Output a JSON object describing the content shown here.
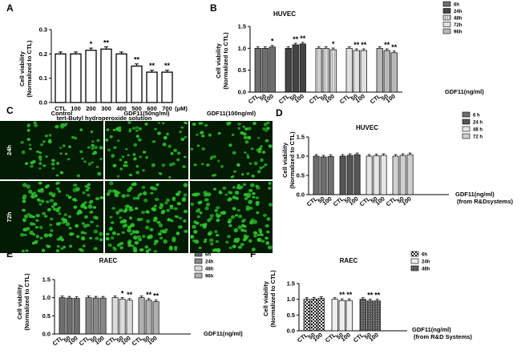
{
  "chart_data": [
    {
      "panel": "A",
      "type": "bar",
      "title": "",
      "ylabel": "Cell viability\n(Normalized to CTL)",
      "xlabel": "tert-Butyl hydroperoxide solution",
      "unit_label": "(μM)",
      "categories": [
        "CTL",
        "100",
        "200",
        "300",
        "400",
        "500",
        "600",
        "700"
      ],
      "values": [
        0.2,
        0.2,
        0.215,
        0.22,
        0.2,
        0.15,
        0.125,
        0.125
      ],
      "errors": [
        0.003,
        0.003,
        0.004,
        0.004,
        0.003,
        0.004,
        0.003,
        0.003
      ],
      "annotations": [
        "",
        "",
        "*",
        "**",
        "",
        "**",
        "**",
        "**"
      ],
      "yticks": [
        "0.0",
        "0.1",
        "0.2",
        "0.3"
      ],
      "ylim": [
        0,
        0.3
      ],
      "fill": "#ffffff"
    },
    {
      "panel": "B",
      "type": "bar",
      "title": "HUVEC",
      "ylabel": "Cell viability\n(Normalized to CTL)",
      "xlabel": "GDF11(ng/ml)",
      "xlabel2": "",
      "groups": [
        "6h",
        "24h",
        "48h",
        "72h",
        "96h"
      ],
      "categories": [
        "CTL",
        "50",
        "100"
      ],
      "series": [
        {
          "name": "6h",
          "values": [
            1.0,
            1.0,
            1.03
          ],
          "annotations": [
            "",
            "",
            "*"
          ]
        },
        {
          "name": "24h",
          "values": [
            1.0,
            1.08,
            1.1
          ],
          "annotations": [
            "",
            "**",
            "**"
          ]
        },
        {
          "name": "48h",
          "values": [
            1.0,
            1.0,
            0.97
          ],
          "annotations": [
            "",
            "",
            "*"
          ]
        },
        {
          "name": "72h",
          "values": [
            1.0,
            0.95,
            0.95
          ],
          "annotations": [
            "",
            "**",
            "**"
          ]
        },
        {
          "name": "96h",
          "values": [
            1.0,
            0.95,
            0.9
          ],
          "annotations": [
            "",
            "**",
            "**"
          ]
        }
      ],
      "legend": [
        "6h",
        "24h",
        "48h",
        "72h",
        "96h"
      ],
      "legend_position": "top-right",
      "yticks": [
        "0.0",
        "0.5",
        "1.0",
        "1.5"
      ],
      "ylim": [
        0,
        1.5
      ]
    },
    {
      "panel": "D",
      "type": "bar",
      "title": "HUVEC",
      "ylabel": "Cell viability\n(Normalized to CTL)",
      "xlabel": "GDF11(ng/ml)",
      "xlabel2": "(from R&Dsystems)",
      "groups": [
        "6 h",
        "24 h",
        "48 h",
        "72 h"
      ],
      "categories": [
        "CTL",
        "50",
        "100"
      ],
      "series": [
        {
          "name": "6 h",
          "values": [
            1.0,
            0.98,
            0.99
          ],
          "annotations": [
            "",
            "",
            ""
          ]
        },
        {
          "name": "24 h",
          "values": [
            1.0,
            1.02,
            1.04
          ],
          "annotations": [
            "",
            "",
            ""
          ]
        },
        {
          "name": "48 h",
          "values": [
            1.0,
            1.01,
            1.02
          ],
          "annotations": [
            "",
            "",
            ""
          ]
        },
        {
          "name": "72 h",
          "values": [
            1.0,
            1.02,
            1.04
          ],
          "annotations": [
            "",
            "",
            ""
          ]
        }
      ],
      "legend": [
        "6 h",
        "24 h",
        "48 h",
        "72 h"
      ],
      "legend_position": "top-right",
      "yticks": [
        "0.0",
        "0.5",
        "1.0",
        "1.5"
      ],
      "ylim": [
        0,
        1.5
      ]
    },
    {
      "panel": "E",
      "type": "bar",
      "title": "RAEC",
      "ylabel": "Cell viability\n(Normalized to CTL)",
      "xlabel": "GDF11(ng/ml)",
      "xlabel2": "",
      "groups": [
        "6h",
        "24h",
        "48h",
        "96h"
      ],
      "categories": [
        "CTL",
        "50",
        "100"
      ],
      "series": [
        {
          "name": "6h",
          "values": [
            1.0,
            0.99,
            0.98
          ],
          "annotations": [
            "",
            "",
            ""
          ]
        },
        {
          "name": "24h",
          "values": [
            1.0,
            0.99,
            0.99
          ],
          "annotations": [
            "",
            "",
            ""
          ]
        },
        {
          "name": "48h",
          "values": [
            1.0,
            0.96,
            0.93
          ],
          "annotations": [
            "",
            "*",
            "**"
          ]
        },
        {
          "name": "96h",
          "values": [
            1.0,
            0.93,
            0.89
          ],
          "annotations": [
            "",
            "**",
            "**"
          ]
        }
      ],
      "legend": [
        "6h",
        "24h",
        "48h",
        "96h"
      ],
      "legend_position": "top-right",
      "yticks": [
        "0.0",
        "0.5",
        "1.0",
        "1.5"
      ],
      "ylim": [
        0,
        1.5
      ]
    },
    {
      "panel": "F",
      "type": "bar",
      "title": "RAEC",
      "ylabel": "Cell viability\n(Normalized to CTL)",
      "xlabel": "GDF11(ng/ml)",
      "xlabel2": "(from R&D Systems)",
      "groups": [
        "6h",
        "24h",
        "48h"
      ],
      "categories": [
        "CTL",
        "50",
        "100"
      ],
      "series": [
        {
          "name": "6h",
          "values": [
            1.0,
            1.01,
            1.03
          ],
          "annotations": [
            "",
            "",
            ""
          ]
        },
        {
          "name": "24h",
          "values": [
            1.0,
            0.96,
            0.96
          ],
          "annotations": [
            "",
            "**",
            "**"
          ]
        },
        {
          "name": "48h",
          "values": [
            1.0,
            0.95,
            0.95
          ],
          "annotations": [
            "",
            "**",
            "**"
          ]
        }
      ],
      "legend": [
        "6h",
        "24h",
        "48h"
      ],
      "legend_position": "top-right",
      "yticks": [
        "0.0",
        "0.5",
        "1.0",
        "1.5"
      ],
      "ylim": [
        0,
        1.5
      ]
    }
  ],
  "micrograph": {
    "panel": "C",
    "columns": [
      "Control",
      "GDF11(50ng/ml)",
      "GDF11(100ng/ml)"
    ],
    "rows": [
      "24h",
      "72h"
    ],
    "colors": {
      "cell": "#2ec22e",
      "bg": "#031a03"
    }
  }
}
